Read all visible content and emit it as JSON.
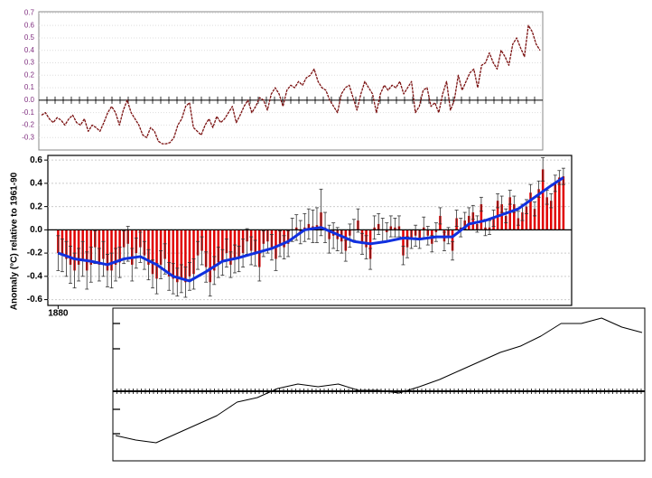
{
  "chart_data": [
    {
      "type": "line",
      "color": "#7a1010",
      "grid": true,
      "ylim": [
        -0.4,
        0.71
      ],
      "yticks": [
        0.7,
        0.6,
        0.5,
        0.4,
        0.3,
        0.2,
        0.1,
        {
          "value": 0,
          "label": "0.0"
        },
        -0.1,
        -0.2,
        -0.3
      ],
      "values": [
        -0.12,
        -0.1,
        -0.15,
        -0.18,
        -0.14,
        -0.16,
        -0.2,
        -0.15,
        -0.12,
        -0.18,
        -0.2,
        -0.15,
        -0.25,
        -0.2,
        -0.22,
        -0.25,
        -0.18,
        -0.1,
        -0.05,
        -0.1,
        -0.2,
        -0.08,
        0.0,
        -0.1,
        -0.15,
        -0.2,
        -0.28,
        -0.3,
        -0.22,
        -0.25,
        -0.33,
        -0.35,
        -0.35,
        -0.34,
        -0.3,
        -0.2,
        -0.15,
        -0.05,
        -0.02,
        -0.22,
        -0.25,
        -0.28,
        -0.2,
        -0.15,
        -0.22,
        -0.13,
        -0.18,
        -0.15,
        -0.1,
        -0.05,
        -0.18,
        -0.12,
        -0.05,
        0.0,
        -0.1,
        -0.05,
        0.02,
        0.0,
        -0.08,
        0.05,
        0.1,
        0.05,
        -0.05,
        0.08,
        0.12,
        0.1,
        0.15,
        0.12,
        0.18,
        0.2,
        0.25,
        0.15,
        0.1,
        0.08,
        0.0,
        -0.05,
        -0.1,
        0.05,
        0.1,
        0.12,
        0.02,
        -0.08,
        0.05,
        0.15,
        0.1,
        0.05,
        -0.1,
        0.05,
        0.12,
        0.08,
        0.12,
        0.1,
        0.15,
        0.05,
        0.1,
        0.15,
        -0.1,
        -0.05,
        0.08,
        0.1,
        -0.05,
        -0.02,
        -0.1,
        0.05,
        0.15,
        -0.08,
        0.0,
        0.2,
        0.08,
        0.15,
        0.22,
        0.25,
        0.1,
        0.28,
        0.3,
        0.38,
        0.3,
        0.25,
        0.4,
        0.35,
        0.28,
        0.45,
        0.5,
        0.42,
        0.35,
        0.6,
        0.55,
        0.45,
        0.4
      ]
    },
    {
      "type": "bar",
      "y_label": "Anomaly (°C) relative to 1961-90",
      "color": "#e00000",
      "error_color": "#333333",
      "grid": true,
      "ylim": [
        -0.65,
        0.64
      ],
      "yticks": [
        0.6,
        0.4,
        0.2,
        {
          "value": 0,
          "label": "0.0"
        },
        -0.2,
        -0.4,
        -0.6
      ],
      "xlim": [
        1877.5,
        2005
      ],
      "xticks": [
        1880
      ],
      "x": [
        1880,
        1881,
        1882,
        1883,
        1884,
        1885,
        1886,
        1887,
        1888,
        1889,
        1890,
        1891,
        1892,
        1893,
        1894,
        1895,
        1896,
        1897,
        1898,
        1899,
        1900,
        1901,
        1902,
        1903,
        1904,
        1905,
        1906,
        1907,
        1908,
        1909,
        1910,
        1911,
        1912,
        1913,
        1914,
        1915,
        1916,
        1917,
        1918,
        1919,
        1920,
        1921,
        1922,
        1923,
        1924,
        1925,
        1926,
        1927,
        1928,
        1929,
        1930,
        1931,
        1932,
        1933,
        1934,
        1935,
        1936,
        1937,
        1938,
        1939,
        1940,
        1941,
        1942,
        1943,
        1944,
        1945,
        1946,
        1947,
        1948,
        1949,
        1950,
        1951,
        1952,
        1953,
        1954,
        1955,
        1956,
        1957,
        1958,
        1959,
        1960,
        1961,
        1962,
        1963,
        1964,
        1965,
        1966,
        1967,
        1968,
        1969,
        1970,
        1971,
        1972,
        1973,
        1974,
        1975,
        1976,
        1977,
        1978,
        1979,
        1980,
        1981,
        1982,
        1983,
        1984,
        1985,
        1986,
        1987,
        1988,
        1989,
        1990,
        1991,
        1992,
        1993,
        1994,
        1995,
        1996,
        1997,
        1998,
        1999,
        2000,
        2001,
        2002,
        2003
      ],
      "values": [
        -0.2,
        -0.22,
        -0.25,
        -0.3,
        -0.35,
        -0.3,
        -0.25,
        -0.35,
        -0.3,
        -0.15,
        -0.3,
        -0.25,
        -0.35,
        -0.35,
        -0.3,
        -0.28,
        -0.15,
        -0.12,
        -0.3,
        -0.2,
        -0.15,
        -0.22,
        -0.3,
        -0.38,
        -0.42,
        -0.3,
        -0.25,
        -0.4,
        -0.42,
        -0.45,
        -0.42,
        -0.45,
        -0.4,
        -0.38,
        -0.22,
        -0.18,
        -0.32,
        -0.45,
        -0.35,
        -0.28,
        -0.28,
        -0.2,
        -0.3,
        -0.25,
        -0.25,
        -0.2,
        -0.1,
        -0.18,
        -0.2,
        -0.32,
        -0.12,
        -0.1,
        -0.15,
        -0.25,
        -0.12,
        -0.15,
        -0.12,
        0.0,
        0.02,
        -0.02,
        0.02,
        0.05,
        0.03,
        0.04,
        0.15,
        0.02,
        -0.08,
        -0.05,
        -0.08,
        -0.1,
        -0.18,
        -0.05,
        0.0,
        0.08,
        -0.12,
        -0.15,
        -0.25,
        0.02,
        0.05,
        0.0,
        -0.02,
        0.03,
        0.02,
        0.03,
        -0.22,
        -0.15,
        -0.08,
        -0.05,
        -0.08,
        0.02,
        -0.05,
        -0.12,
        -0.02,
        0.12,
        -0.1,
        -0.05,
        -0.18,
        0.1,
        0.02,
        0.08,
        0.12,
        0.15,
        0.05,
        0.22,
        0.02,
        0.02,
        0.1,
        0.25,
        0.22,
        0.12,
        0.28,
        0.22,
        0.1,
        0.15,
        0.2,
        0.32,
        0.18,
        0.35,
        0.52,
        0.28,
        0.25,
        0.4,
        0.45,
        0.46
      ],
      "errors": [
        0.15,
        0.14,
        0.15,
        0.16,
        0.15,
        0.14,
        0.15,
        0.16,
        0.15,
        0.14,
        0.14,
        0.15,
        0.14,
        0.15,
        0.14,
        0.13,
        0.14,
        0.15,
        0.14,
        0.13,
        0.13,
        0.12,
        0.13,
        0.12,
        0.13,
        0.12,
        0.13,
        0.12,
        0.13,
        0.12,
        0.12,
        0.13,
        0.12,
        0.13,
        0.12,
        0.12,
        0.13,
        0.12,
        0.12,
        0.13,
        0.11,
        0.12,
        0.11,
        0.12,
        0.11,
        0.12,
        0.11,
        0.12,
        0.11,
        0.12,
        0.11,
        0.1,
        0.11,
        0.1,
        0.11,
        0.1,
        0.11,
        0.1,
        0.11,
        0.1,
        0.12,
        0.13,
        0.14,
        0.15,
        0.2,
        0.13,
        0.12,
        0.11,
        0.1,
        0.1,
        0.09,
        0.1,
        0.09,
        0.1,
        0.09,
        0.1,
        0.09,
        0.1,
        0.09,
        0.1,
        0.08,
        0.09,
        0.08,
        0.09,
        0.08,
        0.09,
        0.08,
        0.09,
        0.08,
        0.09,
        0.08,
        0.07,
        0.08,
        0.07,
        0.08,
        0.07,
        0.08,
        0.07,
        0.08,
        0.07,
        0.07,
        0.06,
        0.07,
        0.06,
        0.07,
        0.06,
        0.07,
        0.06,
        0.07,
        0.06,
        0.06,
        0.07,
        0.06,
        0.07,
        0.06,
        0.07,
        0.06,
        0.07,
        0.1,
        0.06,
        0.06,
        0.07,
        0.06,
        0.07
      ],
      "smooth": {
        "color": "#1030e0",
        "x": [
          1880,
          1884,
          1888,
          1892,
          1896,
          1900,
          1904,
          1908,
          1912,
          1916,
          1920,
          1924,
          1928,
          1932,
          1936,
          1940,
          1944,
          1948,
          1952,
          1956,
          1960,
          1964,
          1968,
          1972,
          1976,
          1980,
          1984,
          1988,
          1992,
          1996,
          2000,
          2003
        ],
        "values": [
          -0.2,
          -0.25,
          -0.27,
          -0.3,
          -0.25,
          -0.23,
          -0.3,
          -0.4,
          -0.44,
          -0.36,
          -0.27,
          -0.24,
          -0.2,
          -0.16,
          -0.1,
          0.0,
          0.02,
          -0.04,
          -0.1,
          -0.12,
          -0.1,
          -0.07,
          -0.08,
          -0.06,
          -0.06,
          0.05,
          0.08,
          0.13,
          0.18,
          0.28,
          0.38,
          0.45
        ]
      }
    },
    {
      "type": "line",
      "color": "#000000",
      "ylim": [
        -0.385,
        0.46
      ],
      "yticks": [
        0.375,
        0.235,
        0,
        -0.1,
        -0.235
      ],
      "values": [
        -0.245,
        -0.27,
        -0.285,
        -0.235,
        -0.185,
        -0.135,
        -0.06,
        -0.035,
        0.015,
        0.04,
        0.025,
        0.04,
        0.005,
        0.005,
        -0.01,
        0.025,
        0.065,
        0.115,
        0.165,
        0.215,
        0.25,
        0.305,
        0.375,
        0.375,
        0.405,
        0.355,
        0.325
      ]
    }
  ]
}
